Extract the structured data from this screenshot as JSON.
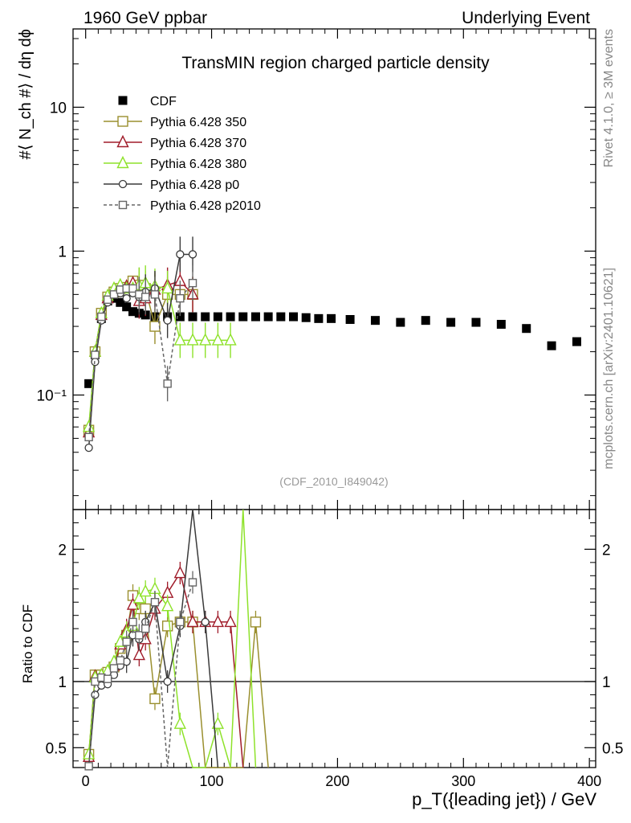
{
  "header": {
    "left": "1960 GeV ppbar",
    "right": "Underlying Event"
  },
  "side": {
    "rivet": "Rivet 4.1.0, ≥ 3M events",
    "mcplots": "mcplots.cern.ch [arXiv:2401.10621]"
  },
  "chart_data": {
    "type": "line",
    "title": "TransMIN region charged particle density",
    "analysis_tag": "(CDF_2010_I849042)",
    "xlabel": "p_T({leading jet}) / GeV",
    "ylabel_top": "#⟨ N_ch #⟩ / dη dϕ",
    "ylabel_bottom": "Ratio to CDF",
    "xlim": [
      -10,
      405
    ],
    "ylim_top": [
      0.016,
      35
    ],
    "ylim_bottom": [
      0.35,
      2.3
    ],
    "scale_top": "log",
    "x_ticks": [
      0,
      100,
      200,
      300,
      400
    ],
    "x_tick_labels": [
      "0",
      "100",
      "200",
      "300",
      "400"
    ],
    "top_ticks": [
      0.1,
      1,
      10
    ],
    "top_tick_labels": [
      "10⁻¹",
      "1",
      "10"
    ],
    "bottom_ticks": [
      0.5,
      1,
      2
    ],
    "bottom_tick_labels": [
      "0.5",
      "1",
      "2"
    ],
    "legend_position": "top-left",
    "series": [
      {
        "name": "CDF",
        "marker": "filled-square",
        "color": "#000000",
        "x": [
          2.5,
          7.5,
          12.5,
          17.5,
          22.5,
          27.5,
          32.5,
          37.5,
          42.5,
          47.5,
          55,
          65,
          75,
          85,
          95,
          105,
          115,
          125,
          135,
          145,
          155,
          165,
          175,
          185,
          195,
          210,
          230,
          250,
          270,
          290,
          310,
          330,
          350,
          370,
          390
        ],
        "values": [
          0.12,
          0.19,
          0.34,
          0.45,
          0.47,
          0.44,
          0.41,
          0.38,
          0.37,
          0.36,
          0.35,
          0.35,
          0.35,
          0.35,
          0.35,
          0.35,
          0.35,
          0.35,
          0.35,
          0.35,
          0.35,
          0.35,
          0.345,
          0.34,
          0.34,
          0.335,
          0.33,
          0.32,
          0.33,
          0.32,
          0.32,
          0.31,
          0.29,
          0.22,
          0.235
        ]
      },
      {
        "name": "Pythia 6.428 350",
        "marker": "open-square",
        "color": "#9a8f2e",
        "x": [
          2.5,
          7.5,
          12.5,
          17.5,
          22.5,
          27.5,
          32.5,
          37.5,
          42.5,
          47.5,
          55,
          65,
          75,
          85
        ],
        "values": [
          0.057,
          0.2,
          0.37,
          0.48,
          0.52,
          0.55,
          0.56,
          0.62,
          0.58,
          0.55,
          0.3,
          0.5,
          0.5,
          0.5
        ],
        "ratio": [
          0.45,
          1.05,
          1.05,
          1.07,
          1.11,
          1.25,
          1.35,
          1.65,
          1.55,
          1.55,
          0.87,
          1.42,
          1.45,
          1.45,
          0.2,
          0.2,
          0.2,
          0.2,
          1.45,
          0.2
        ],
        "ratio_x": [
          2.5,
          7.5,
          12.5,
          17.5,
          22.5,
          27.5,
          32.5,
          37.5,
          42.5,
          47.5,
          55,
          65,
          75,
          85,
          95,
          105,
          115,
          125,
          135,
          145
        ]
      },
      {
        "name": "Pythia 6.428 370",
        "marker": "open-triangle",
        "color": "#a01c2a",
        "x": [
          2.5,
          7.5,
          12.5,
          17.5,
          22.5,
          27.5,
          32.5,
          37.5,
          42.5,
          47.5,
          55,
          65,
          75,
          85
        ],
        "values": [
          0.055,
          0.2,
          0.36,
          0.47,
          0.53,
          0.56,
          0.57,
          0.6,
          0.45,
          0.47,
          0.54,
          0.58,
          0.62,
          0.5
        ],
        "ratio": [
          0.43,
          1.04,
          1.04,
          1.06,
          1.12,
          1.28,
          1.39,
          1.58,
          1.2,
          1.32,
          1.55,
          1.67,
          1.82,
          1.45,
          1.45,
          1.45,
          1.45,
          0.2
        ],
        "ratio_x": [
          2.5,
          7.5,
          12.5,
          17.5,
          22.5,
          27.5,
          32.5,
          37.5,
          42.5,
          47.5,
          55,
          65,
          75,
          85,
          95,
          105,
          115,
          125
        ]
      },
      {
        "name": "Pythia 6.428 380",
        "marker": "open-triangle",
        "color": "#8ee22a",
        "x": [
          2.5,
          7.5,
          12.5,
          17.5,
          22.5,
          27.5,
          32.5,
          37.5,
          42.5,
          47.5,
          55,
          65,
          75,
          85,
          95,
          105,
          115
        ],
        "values": [
          0.06,
          0.2,
          0.37,
          0.49,
          0.55,
          0.58,
          0.55,
          0.55,
          0.58,
          0.6,
          0.57,
          0.55,
          0.24,
          0.24,
          0.24,
          0.24,
          0.24
        ],
        "ratio": [
          0.45,
          1.03,
          1.05,
          1.08,
          1.15,
          1.3,
          1.37,
          1.42,
          1.63,
          1.68,
          1.7,
          1.57,
          0.68,
          0.2,
          0.2,
          0.68,
          0.2,
          2.4,
          0.2
        ],
        "ratio_x": [
          2.5,
          7.5,
          12.5,
          17.5,
          22.5,
          27.5,
          32.5,
          37.5,
          42.5,
          47.5,
          55,
          65,
          75,
          85,
          95,
          105,
          115,
          125,
          135
        ]
      },
      {
        "name": "Pythia 6.428 p0",
        "marker": "open-circle",
        "color": "#3a3a3a",
        "x": [
          2.5,
          7.5,
          12.5,
          17.5,
          22.5,
          27.5,
          32.5,
          37.5,
          42.5,
          47.5,
          55,
          65,
          75,
          85
        ],
        "values": [
          0.043,
          0.17,
          0.33,
          0.44,
          0.5,
          0.51,
          0.47,
          0.51,
          0.48,
          0.52,
          0.55,
          0.33,
          0.95,
          0.95
        ],
        "ratio": [
          0.36,
          0.9,
          0.97,
          0.98,
          1.05,
          1.12,
          1.15,
          1.35,
          1.32,
          1.45,
          1.6,
          1.0,
          1.42,
          2.4,
          1.45,
          0.2
        ],
        "ratio_x": [
          2.5,
          7.5,
          12.5,
          17.5,
          22.5,
          27.5,
          32.5,
          37.5,
          42.5,
          47.5,
          55,
          65,
          75,
          85,
          95,
          105
        ]
      },
      {
        "name": "Pythia 6.428 p2010",
        "marker": "open-square-dashed",
        "color": "#666666",
        "x": [
          2.5,
          7.5,
          12.5,
          17.5,
          22.5,
          27.5,
          32.5,
          37.5,
          42.5,
          47.5,
          55,
          65,
          75,
          85
        ],
        "values": [
          0.051,
          0.19,
          0.35,
          0.46,
          0.5,
          0.54,
          0.55,
          0.55,
          0.5,
          0.48,
          0.5,
          0.12,
          0.47,
          0.6
        ],
        "ratio": [
          0.36,
          1.0,
          1.03,
          1.02,
          1.1,
          1.16,
          1.3,
          1.45,
          1.35,
          1.4,
          1.6,
          0.34,
          1.45,
          1.75
        ],
        "ratio_x": [
          2.5,
          7.5,
          12.5,
          17.5,
          22.5,
          27.5,
          32.5,
          37.5,
          42.5,
          47.5,
          55,
          65,
          75,
          85
        ]
      }
    ]
  }
}
